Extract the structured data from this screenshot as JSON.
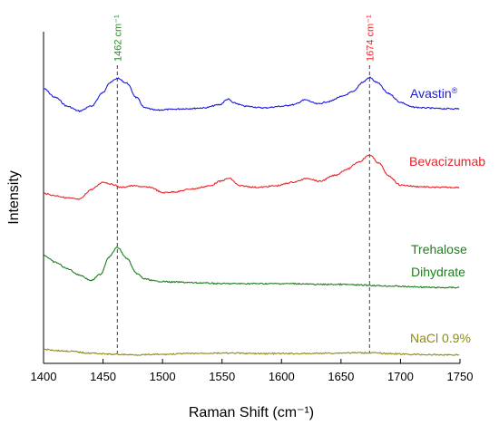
{
  "chart_data": {
    "type": "line",
    "title": "",
    "xlabel": "Raman Shift (cm⁻¹)",
    "ylabel": "Intensity",
    "xlim": [
      1400,
      1750
    ],
    "xticks": [
      1400,
      1450,
      1500,
      1550,
      1600,
      1650,
      1700,
      1750
    ],
    "grid": false,
    "annotations": [
      {
        "x": 1462,
        "text": "1462 cm⁻¹",
        "color": "#2a8a2a",
        "style": "dashed-vertical"
      },
      {
        "x": 1674,
        "text": "1674 cm⁻¹",
        "color": "#e8262a",
        "style": "dashed-vertical"
      }
    ],
    "series": [
      {
        "name": "Avastin®",
        "color": "#1a1adb",
        "x": [
          1400,
          1410,
          1420,
          1430,
          1440,
          1450,
          1455,
          1462,
          1470,
          1478,
          1485,
          1495,
          1505,
          1520,
          1535,
          1548,
          1555,
          1560,
          1570,
          1585,
          1600,
          1610,
          1620,
          1630,
          1640,
          1650,
          1660,
          1668,
          1674,
          1680,
          1690,
          1700,
          1710,
          1720,
          1735,
          1750
        ],
        "values": [
          0.66,
          0.55,
          0.44,
          0.38,
          0.44,
          0.61,
          0.73,
          0.79,
          0.73,
          0.55,
          0.42,
          0.39,
          0.4,
          0.41,
          0.42,
          0.46,
          0.53,
          0.48,
          0.44,
          0.42,
          0.44,
          0.46,
          0.52,
          0.47,
          0.5,
          0.56,
          0.62,
          0.74,
          0.8,
          0.74,
          0.6,
          0.49,
          0.43,
          0.42,
          0.41,
          0.41
        ]
      },
      {
        "name": "Bevacizumab",
        "color": "#e8262a",
        "x": [
          1400,
          1410,
          1420,
          1430,
          1440,
          1450,
          1458,
          1465,
          1475,
          1490,
          1500,
          1510,
          1525,
          1540,
          1548,
          1556,
          1565,
          1580,
          1595,
          1610,
          1622,
          1632,
          1645,
          1655,
          1665,
          1674,
          1682,
          1690,
          1700,
          1715,
          1730,
          1750
        ],
        "values": [
          0.2,
          0.17,
          0.14,
          0.12,
          0.25,
          0.35,
          0.32,
          0.28,
          0.3,
          0.28,
          0.21,
          0.22,
          0.26,
          0.3,
          0.36,
          0.4,
          0.3,
          0.28,
          0.3,
          0.35,
          0.4,
          0.36,
          0.44,
          0.52,
          0.62,
          0.71,
          0.6,
          0.43,
          0.31,
          0.29,
          0.28,
          0.28
        ]
      },
      {
        "name": "Trehalose Dihydrate",
        "color": "#1e7d1e",
        "x": [
          1400,
          1410,
          1420,
          1430,
          1440,
          1448,
          1455,
          1462,
          1470,
          1478,
          1485,
          1495,
          1510,
          1530,
          1550,
          1570,
          1590,
          1610,
          1630,
          1650,
          1670,
          1690,
          1710,
          1730,
          1750
        ],
        "values": [
          0.36,
          0.27,
          0.19,
          0.11,
          0.04,
          0.12,
          0.34,
          0.46,
          0.32,
          0.13,
          0.06,
          0.03,
          0.02,
          0.01,
          0.0,
          0.0,
          0.0,
          0.0,
          -0.01,
          -0.01,
          -0.02,
          -0.03,
          -0.04,
          -0.05,
          -0.05
        ]
      },
      {
        "name": "NaCl 0.9%",
        "color": "#8e8b12",
        "x": [
          1400,
          1420,
          1440,
          1460,
          1480,
          1500,
          1520,
          1540,
          1560,
          1580,
          1600,
          1620,
          1640,
          1660,
          1674,
          1690,
          1710,
          1730,
          1750
        ],
        "values": [
          0.14,
          0.1,
          0.05,
          0.02,
          0.01,
          0.02,
          0.04,
          0.05,
          0.05,
          0.04,
          0.04,
          0.04,
          0.05,
          0.06,
          0.06,
          0.04,
          0.02,
          0.01,
          0.01
        ]
      }
    ],
    "labels": {
      "avastin_main": "Avastin",
      "avastin_sup": "®",
      "bevacizumab": "Bevacizumab",
      "trehalose_line1": "Trehalose",
      "trehalose_line2": "Dihydrate",
      "nacl": "NaCl 0.9%"
    }
  }
}
